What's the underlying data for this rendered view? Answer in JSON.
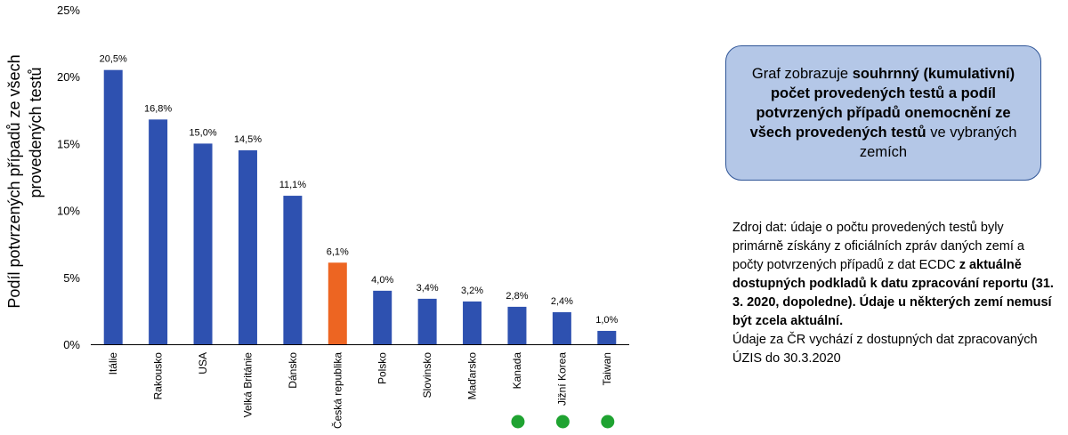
{
  "chart_data": {
    "type": "bar",
    "categories": [
      "Itálie",
      "Rakousko",
      "USA",
      "Velká Británie",
      "Dánsko",
      "Česká republika",
      "Polsko",
      "Slovinsko",
      "Maďarsko",
      "Kanada",
      "Jižní Korea",
      "Taiwan"
    ],
    "values": [
      20.5,
      16.8,
      15.0,
      14.5,
      11.1,
      6.1,
      4.0,
      3.4,
      3.2,
      2.8,
      2.4,
      1.0
    ],
    "value_labels": [
      "20,5%",
      "16,8%",
      "15,0%",
      "14,5%",
      "11,1%",
      "6,1%",
      "4,0%",
      "3,4%",
      "3,2%",
      "2,8%",
      "2,4%",
      "1,0%"
    ],
    "ylabel": "Podíl potvrzených případů ze všech provedených testů",
    "ylim": [
      0,
      25
    ],
    "yticks": [
      0,
      5,
      10,
      15,
      20,
      25
    ],
    "ytick_labels": [
      "0%",
      "5%",
      "10%",
      "15%",
      "20%",
      "25%"
    ],
    "bar_color": "#2e51b0",
    "highlight_category": "Česká republika",
    "highlight_color": "#ed6522",
    "marked_categories": [
      "Kanada",
      "Jižní Korea",
      "Taiwan"
    ],
    "marker_color": "#1fa331",
    "grid": false
  },
  "info_box": {
    "p1": "Graf zobrazuje ",
    "b1": "souhrnný (kumulativní) počet provedených testů a podíl potvrzených případů onemocnění ze všech provedených testů",
    "p2": " ve vybraných zemích",
    "fill_color": "#b4c7e7",
    "border_color": "#2f5597"
  },
  "source": {
    "p1": "Zdroj dat: údaje o počtu provedených testů byly primárně získány z oficiálních zpráv daných zemí a počty potvrzených případů z dat ECDC ",
    "b1": "z aktuálně dostupných podkladů k datu zpracování reportu (31. 3. 2020, dopoledne). Údaje u některých zemí nemusí být zcela aktuální.",
    "p2": "Údaje za ČR vychází z dostupných dat zpracovaných ÚZIS do 30.3.2020"
  }
}
